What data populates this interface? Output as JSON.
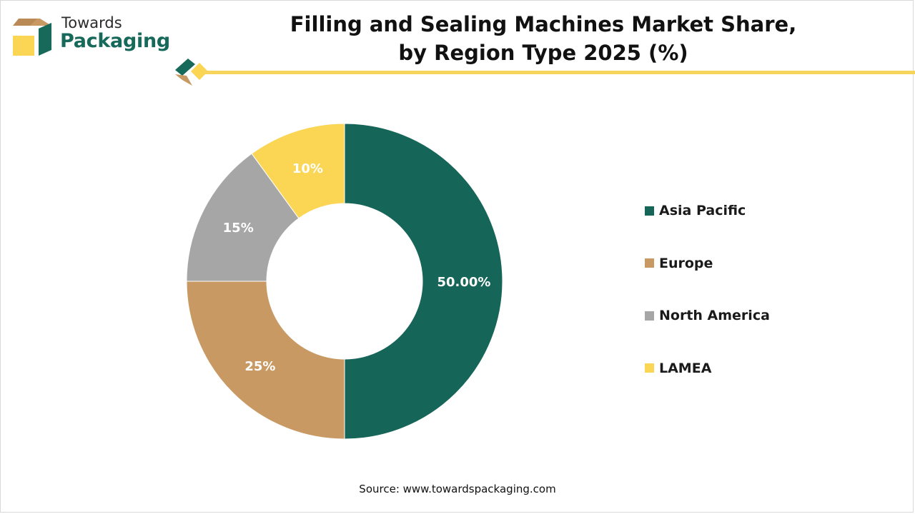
{
  "logo": {
    "line1": "Towards",
    "line2": "Packaging"
  },
  "title_line1": "Filling and Sealing Machines Market Share,",
  "title_line2": "by Region Type 2025 (%)",
  "source": "Source: www.towardspackaging.com",
  "colors": {
    "asia_pacific": "#156558",
    "europe": "#c99963",
    "north_america": "#a6a6a6",
    "lamea": "#fbd554",
    "accent_line": "#f7d55c"
  },
  "chart_data": {
    "type": "pie",
    "style": "donut",
    "title": "Filling and Sealing Machines Market Share, by Region Type 2025 (%)",
    "legend_position": "right",
    "slices": [
      {
        "label": "Asia Pacific",
        "value": 50,
        "display": "50.00%",
        "color": "#156558"
      },
      {
        "label": "Europe",
        "value": 25,
        "display": "25%",
        "color": "#c99963"
      },
      {
        "label": "North America",
        "value": 15,
        "display": "15%",
        "color": "#a6a6a6"
      },
      {
        "label": "LAMEA",
        "value": 10,
        "display": "10%",
        "color": "#fbd554"
      }
    ]
  }
}
